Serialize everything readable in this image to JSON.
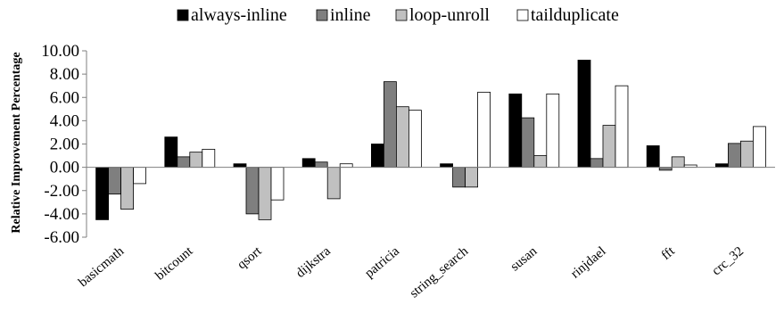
{
  "chart_data": {
    "type": "bar",
    "title": "",
    "xlabel": "",
    "ylabel": "Relative Improvement Percentage",
    "ylim": [
      -6,
      10
    ],
    "yticks": [
      "10.00",
      "8.00",
      "6.00",
      "4.00",
      "2.00",
      "0.00",
      "-2.00",
      "-4.00",
      "-6.00"
    ],
    "ytick_values": [
      10,
      8,
      6,
      4,
      2,
      0,
      -2,
      -4,
      -6
    ],
    "categories": [
      "basicmath",
      "bitcount",
      "qsort",
      "dijkstra",
      "patricia",
      "string_search",
      "susan",
      "rinjdael",
      "fft",
      "crc_32"
    ],
    "series": [
      {
        "name": "always-inline",
        "color": "#000000",
        "values": [
          -4.5,
          2.6,
          0.3,
          0.75,
          2.0,
          0.3,
          6.3,
          9.2,
          1.85,
          0.3
        ]
      },
      {
        "name": "inline",
        "color": "#7f7f7f",
        "values": [
          -2.3,
          0.9,
          -4.0,
          0.45,
          7.35,
          -1.7,
          4.25,
          0.75,
          -0.25,
          2.05
        ]
      },
      {
        "name": "loop-unroll",
        "color": "#c0c0c0",
        "values": [
          -3.6,
          1.3,
          -4.5,
          -2.7,
          5.2,
          -1.7,
          1.0,
          3.6,
          0.9,
          2.25
        ]
      },
      {
        "name": "tailduplicate",
        "color": "#ffffff",
        "values": [
          -1.4,
          1.55,
          -2.8,
          0.3,
          4.9,
          6.45,
          6.3,
          7.0,
          0.2,
          3.5
        ]
      }
    ],
    "grid": false,
    "legend_position": "top"
  }
}
